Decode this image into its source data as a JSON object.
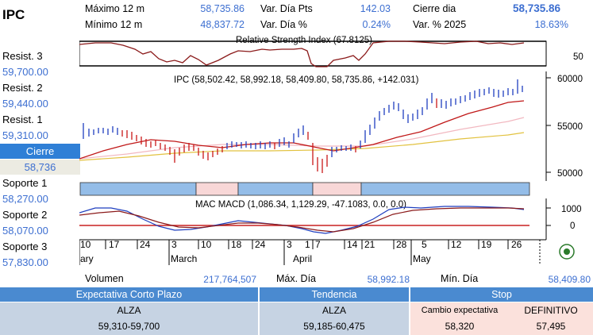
{
  "title": "IPC",
  "header": {
    "max12_label": "Máximo 12 m",
    "max12_value": "58,735.86",
    "min12_label": "Mínimo 12 m",
    "min12_value": "48,837.72",
    "var_pts_label": "Var. Día Pts",
    "var_pts_value": "142.03",
    "var_pct_label": "Var. Día %",
    "var_pct_value": "0.24%",
    "close_label": "Cierre dia",
    "close_value": "58,735.86",
    "var_year_label": "Var. % 2025",
    "var_year_value": "18.63%"
  },
  "levels": {
    "resist3_label": "Resist. 3",
    "resist3_value": "59,700.00",
    "resist2_label": "Resist. 2",
    "resist2_value": "59,440.00",
    "resist1_label": "Resist. 1",
    "resist1_value": "59,310.00",
    "close_label": "Cierre",
    "close_value": "58,736",
    "support1_label": "Soporte 1",
    "support1_value": "58,270.00",
    "support2_label": "Soporte 2",
    "support2_value": "58,070.00",
    "support3_label": "Soporte 3",
    "support3_value": "57,830.00"
  },
  "stats": {
    "volume_label": "Volumen",
    "volume_value": "217,764,507",
    "max_day_label": "Máx. Día",
    "max_day_value": "58,992.18",
    "min_day_label": "Mín. Día",
    "min_day_value": "58,409.80"
  },
  "table": {
    "expectation_header": "Expectativa Corto Plazo",
    "trend_header": "Tendencia",
    "stop_header": "Stop",
    "expectation_value": "ALZA",
    "expectation_range": "59,310-59,700",
    "trend_value": "ALZA",
    "trend_range": "59,185-60,475",
    "stop_change_label": "Cambio expectativa",
    "stop_change_value": "58,320",
    "stop_final_label": "DEFINITIVO",
    "stop_final_value": "57,495"
  },
  "chart": {
    "rsi_label": "Relative Strength Index (67.8125)",
    "rsi_tick": "50",
    "price_label": "IPC (58,502.42, 58,992.18, 58,409.80, 58,735.86, +142.031)",
    "price_ticks": [
      "60000",
      "55000",
      "50000"
    ],
    "macd_label": "MAC MACD (1,086.34, 1,129.29, -47.1083, 0.0, 0.0)",
    "macd_ticks": [
      "1000",
      "0"
    ],
    "day_labels": [
      "10",
      "17",
      "24",
      "3",
      "10",
      "18",
      "24",
      "3",
      "1",
      "7",
      "14",
      "21",
      "28",
      "5",
      "12",
      "19",
      "26"
    ],
    "month_labels": [
      "ary",
      "March",
      "April",
      "May"
    ],
    "colors": {
      "accent": "#3d6fd1",
      "header_bar": "#4a8ad0",
      "up_bar": "#1f3fbf",
      "down_bar": "#c81818"
    }
  }
}
